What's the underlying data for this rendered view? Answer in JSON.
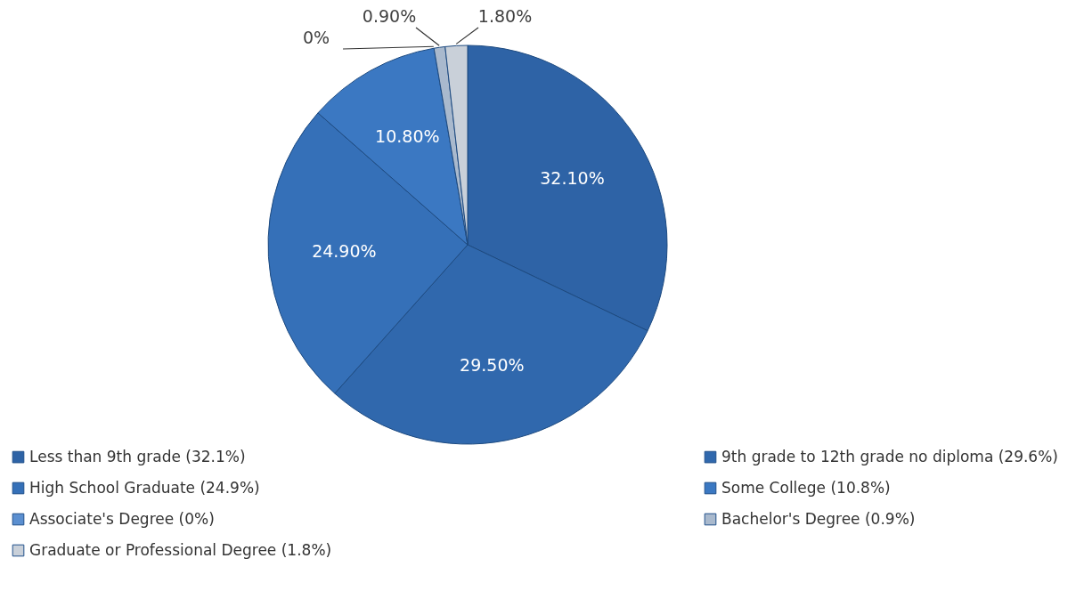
{
  "chart_data": {
    "type": "pie",
    "categories": [
      "Less than 9th grade (32.1%)",
      "9th grade to 12th grade no diploma (29.6%)",
      "High School Graduate (24.9%)",
      "Some College (10.8%)",
      "Associate's Degree (0%)",
      "Bachelor's Degree (0.9%)",
      "Graduate or Professional Degree (1.8%)"
    ],
    "values": [
      32.1,
      29.5,
      24.9,
      10.8,
      0,
      0.9,
      1.8
    ],
    "colors": [
      "#2e63a6",
      "#3068ad",
      "#3570b8",
      "#3b78c2",
      "#5b8fd0",
      "#a9b9cd",
      "#c9d0d9"
    ],
    "value_labels": [
      "32.10%",
      "29.50%",
      "24.90%",
      "10.80%",
      "0%",
      "0.90%",
      "1.80%"
    ],
    "legend": "bottom"
  }
}
